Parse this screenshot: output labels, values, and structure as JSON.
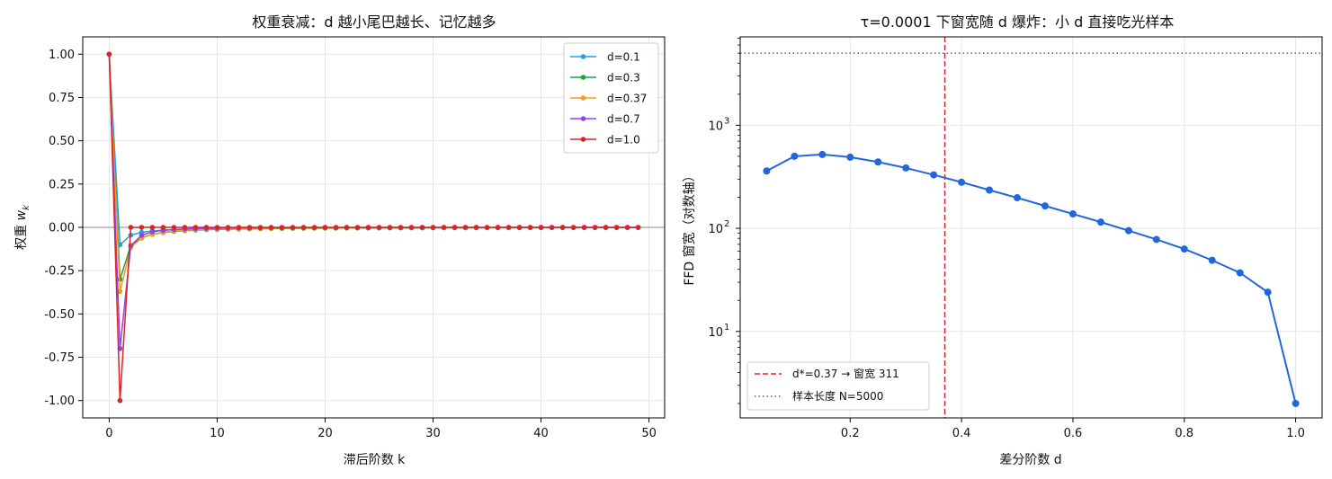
{
  "chart_data": [
    {
      "type": "line",
      "title": "权重衰减：d 越小尾巴越长、记忆越多",
      "xlabel": "滞后阶数 k",
      "ylabel": "权重 w_k",
      "xlim": [
        -2.45,
        51.45
      ],
      "ylim": [
        -1.1,
        1.1
      ],
      "xticks": [
        0,
        10,
        20,
        30,
        40,
        50
      ],
      "xtick_labels": [
        "0",
        "10",
        "20",
        "30",
        "40",
        "50"
      ],
      "yticks": [
        1.0,
        0.75,
        0.5,
        0.25,
        0.0,
        -0.25,
        -0.5,
        -0.75,
        -1.0
      ],
      "ytick_labels": [
        "1.00",
        "0.75",
        "0.50",
        "0.25",
        "0.00",
        "-0.25",
        "-0.50",
        "-0.75",
        "-1.00"
      ],
      "grid": true,
      "legend_position": "top-right",
      "zero_line": 0,
      "x": [
        0,
        1,
        2,
        3,
        4,
        5,
        6,
        7,
        8,
        9,
        10,
        11,
        12,
        13,
        14,
        15,
        16,
        17,
        18,
        19,
        20,
        21,
        22,
        23,
        24,
        25,
        26,
        27,
        28,
        29,
        30,
        31,
        32,
        33,
        34,
        35,
        36,
        37,
        38,
        39,
        40,
        41,
        42,
        43,
        44,
        45,
        46,
        47,
        48,
        49
      ],
      "series": [
        {
          "name": "d=0.1",
          "color": "#1ba3dd",
          "values": [
            1.0,
            -0.1,
            -0.045,
            -0.0285,
            -0.0207,
            -0.0162,
            -0.0133,
            -0.0112,
            -0.0096,
            -0.0084,
            -0.0075,
            -0.0068,
            -0.0062,
            -0.0056,
            -0.0052,
            -0.0048,
            -0.0045,
            -0.0042,
            -0.004,
            -0.0037,
            -0.0035,
            -0.0034,
            -0.0032,
            -0.003,
            -0.0029,
            -0.0028,
            -0.0027,
            -0.0026,
            -0.0025,
            -0.0024,
            -0.0023,
            -0.0022,
            -0.0021,
            -0.0021,
            -0.002,
            -0.0019,
            -0.0019,
            -0.0018,
            -0.0018,
            -0.0017,
            -0.0017,
            -0.0016,
            -0.0016,
            -0.0015,
            -0.0015,
            -0.0015,
            -0.0014,
            -0.0014,
            -0.0014,
            -0.0013
          ]
        },
        {
          "name": "d=0.3",
          "color": "#22a045",
          "values": [
            1.0,
            -0.3,
            -0.105,
            -0.0595,
            -0.0402,
            -0.0298,
            -0.0234,
            -0.019,
            -0.0159,
            -0.0136,
            -0.0118,
            -0.0104,
            -0.0093,
            -0.0083,
            -0.0076,
            -0.0069,
            -0.0063,
            -0.0058,
            -0.0054,
            -0.005,
            -0.0047,
            -0.0044,
            -0.0041,
            -0.0039,
            -0.0037,
            -0.0035,
            -0.0033,
            -0.0031,
            -0.003,
            -0.0028,
            -0.0027,
            -0.0026,
            -0.0025,
            -0.0024,
            -0.0023,
            -0.0022,
            -0.0021,
            -0.0021,
            -0.002,
            -0.0019,
            -0.0019,
            -0.0018,
            -0.0017,
            -0.0017,
            -0.0016,
            -0.0016,
            -0.0015,
            -0.0015,
            -0.0015,
            -0.0014
          ]
        },
        {
          "name": "d=0.37",
          "color": "#f59c1a",
          "values": [
            1.0,
            -0.37,
            -0.1166,
            -0.0622,
            -0.0398,
            -0.0281,
            -0.0211,
            -0.0166,
            -0.0134,
            -0.0111,
            -0.0094,
            -0.008,
            -0.007,
            -0.0061,
            -0.0054,
            -0.0048,
            -0.0043,
            -0.0039,
            -0.0035,
            -0.0032,
            -0.0029,
            -0.0027,
            -0.0025,
            -0.0023,
            -0.0021,
            -0.002,
            -0.0018,
            -0.0017,
            -0.0016,
            -0.0015,
            -0.0014,
            -0.0013,
            -0.0012,
            -0.0012,
            -0.0011,
            -0.001,
            -0.001,
            -0.0009,
            -0.0009,
            -0.0008,
            -0.0008,
            -0.0008,
            -0.0007,
            -0.0007,
            -0.0007,
            -0.0006,
            -0.0006,
            -0.0006,
            -0.0006,
            -0.0005
          ]
        },
        {
          "name": "d=0.7",
          "color": "#9b3ee8",
          "values": [
            1.0,
            -0.7,
            -0.105,
            -0.0455,
            -0.0262,
            -0.0173,
            -0.0124,
            -0.0093,
            -0.0073,
            -0.0059,
            -0.0048,
            -0.004,
            -0.0034,
            -0.0029,
            -0.0025,
            -0.0022,
            -0.0019,
            -0.0017,
            -0.0015,
            -0.0014,
            -0.0012,
            -0.0011,
            -0.001,
            -0.0009,
            -0.0008,
            -0.0008,
            -0.0007,
            -0.0007,
            -0.0006,
            -0.0006,
            -0.0005,
            -0.0005,
            -0.0005,
            -0.0004,
            -0.0004,
            -0.0004,
            -0.0004,
            -0.0003,
            -0.0003,
            -0.0003,
            -0.0003,
            -0.0003,
            -0.0003,
            -0.0002,
            -0.0002,
            -0.0002,
            -0.0002,
            -0.0002,
            -0.0002,
            -0.0002
          ]
        },
        {
          "name": "d=1.0",
          "color": "#d62728",
          "values": [
            1.0,
            -1.0,
            0,
            0,
            0,
            0,
            0,
            0,
            0,
            0,
            0,
            0,
            0,
            0,
            0,
            0,
            0,
            0,
            0,
            0,
            0,
            0,
            0,
            0,
            0,
            0,
            0,
            0,
            0,
            0,
            0,
            0,
            0,
            0,
            0,
            0,
            0,
            0,
            0,
            0,
            0,
            0,
            0,
            0,
            0,
            0,
            0,
            0,
            0,
            0
          ]
        }
      ]
    },
    {
      "type": "line",
      "title": "τ=0.0001 下窗宽随 d 爆炸：小 d 直接吃光样本",
      "xlabel": "差分阶数 d",
      "ylabel": "FFD 窗宽（对数轴）",
      "y_scale": "log",
      "xlim": [
        0.0025,
        1.0475
      ],
      "ylim": [
        1.45,
        7200
      ],
      "xticks": [
        0.2,
        0.4,
        0.6,
        0.8,
        1.0
      ],
      "xtick_labels": [
        "0.2",
        "0.4",
        "0.6",
        "0.8",
        "1.0"
      ],
      "yticks": [
        10,
        100,
        1000
      ],
      "ytick_labels": [
        "10",
        "10",
        "10"
      ],
      "ytick_superscripts": [
        "1",
        "2",
        "3"
      ],
      "grid": true,
      "legend_position": "bottom-left",
      "series": [
        {
          "name": "",
          "color": "#2266dd",
          "x": [
            0.05,
            0.1,
            0.15,
            0.2,
            0.25,
            0.3,
            0.35,
            0.4,
            0.45,
            0.5,
            0.55,
            0.6,
            0.65,
            0.7,
            0.75,
            0.8,
            0.85,
            0.9,
            0.95,
            1.0
          ],
          "values": [
            360,
            500,
            520,
            490,
            440,
            385,
            330,
            280,
            235,
            198,
            165,
            138,
            115,
            95,
            78,
            63,
            49,
            37,
            24,
            2
          ]
        }
      ],
      "annotations": [
        {
          "kind": "vline",
          "x": 0.37,
          "color": "#d62728",
          "style": "dashed",
          "label": "d*=0.37 → 窗宽 311"
        },
        {
          "kind": "hline",
          "y": 5000,
          "color": "#55608a",
          "style": "dotted",
          "label": "样本长度 N=5000"
        }
      ]
    }
  ]
}
